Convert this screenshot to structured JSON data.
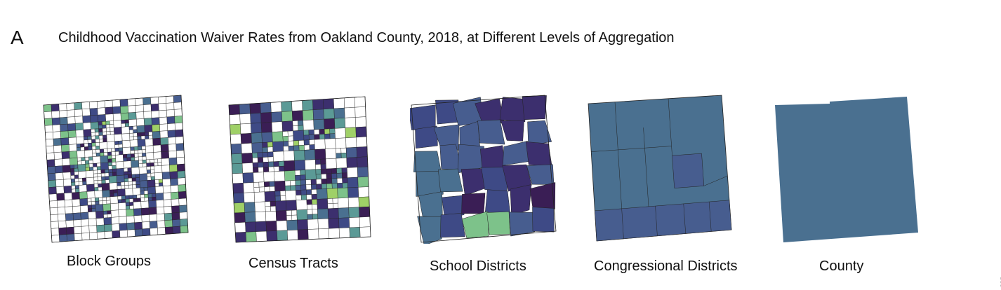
{
  "panel_letter": "A",
  "title": "Childhood Vaccination Waiver Rates from Oakland County, 2018, at Different Levels of Aggregation",
  "palette": {
    "darkest": "#3a1e55",
    "dark": "#3c2f6e",
    "indigo": "#3e4a86",
    "slate": "#475d8f",
    "steel": "#4a7090",
    "teal": "#5b9a96",
    "green": "#7dc28a",
    "lime": "#9fd067",
    "line": "#222222",
    "blank": "#ffffff"
  },
  "maps": [
    {
      "id": "block-groups",
      "label": "Block Groups"
    },
    {
      "id": "census-tracts",
      "label": "Census Tracts"
    },
    {
      "id": "school-districts",
      "label": "School Districts"
    },
    {
      "id": "congressional-districts",
      "label": "Congressional Districts"
    },
    {
      "id": "county",
      "label": "County"
    }
  ]
}
